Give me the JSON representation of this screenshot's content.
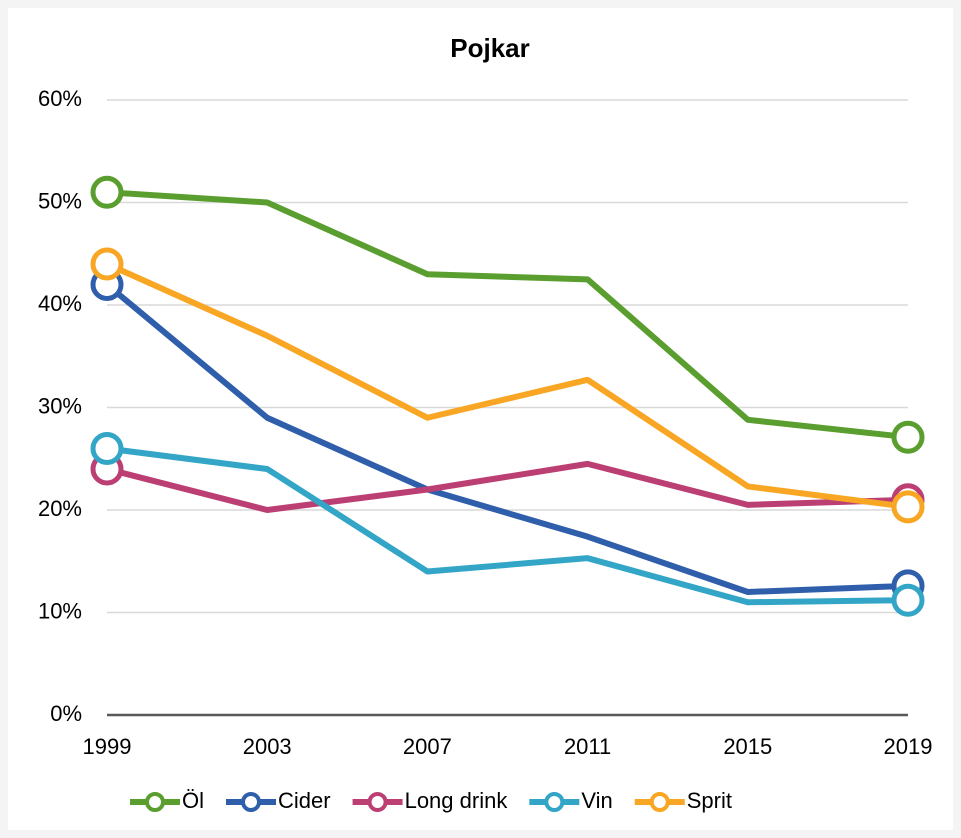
{
  "chart_data": {
    "type": "line",
    "title": "Pojkar",
    "categories": [
      "1999",
      "2003",
      "2007",
      "2011",
      "2015",
      "2019"
    ],
    "series": [
      {
        "name": "Öl",
        "color": "#5b9e30",
        "values": [
          51,
          50,
          43,
          42.5,
          28.8,
          27.1
        ]
      },
      {
        "name": "Cider",
        "color": "#2f5eab",
        "values": [
          42,
          29,
          22,
          17.4,
          12,
          12.6
        ]
      },
      {
        "name": "Long drink",
        "color": "#bc3f74",
        "values": [
          24,
          20,
          22,
          24.5,
          20.5,
          21
        ]
      },
      {
        "name": "Vin",
        "color": "#33a6c7",
        "values": [
          26,
          24,
          14,
          15.3,
          11,
          11.2
        ]
      },
      {
        "name": "Sprit",
        "color": "#f8a623",
        "values": [
          44,
          37,
          29,
          32.7,
          22.3,
          20.3
        ]
      }
    ],
    "ylim": [
      0,
      60
    ],
    "yticks": [
      {
        "value": 0,
        "label": "0%"
      },
      {
        "value": 10,
        "label": "10%"
      },
      {
        "value": 20,
        "label": "20%"
      },
      {
        "value": 30,
        "label": "30%"
      },
      {
        "value": 40,
        "label": "40%"
      },
      {
        "value": 50,
        "label": "50%"
      },
      {
        "value": 60,
        "label": "60%"
      }
    ],
    "grid": true,
    "legend": "bottom"
  }
}
